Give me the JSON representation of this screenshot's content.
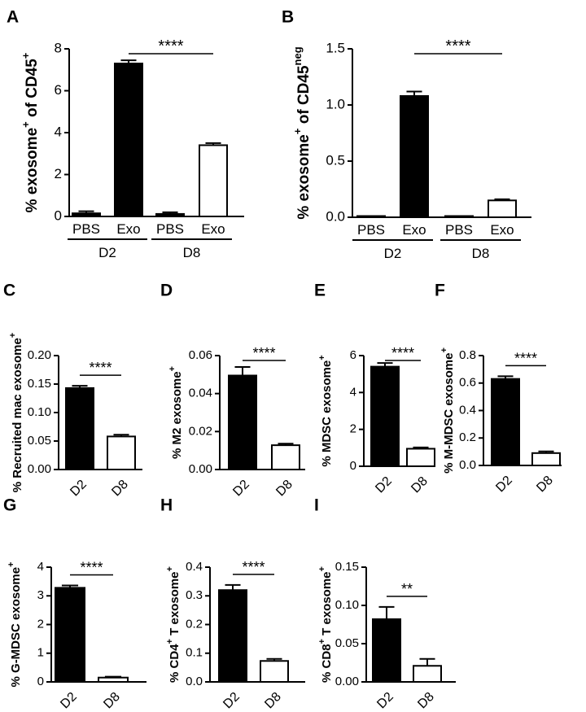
{
  "figure_title": "",
  "chart_data": [
    {
      "panel": "A",
      "type": "bar",
      "ylabel": "% exosome",
      "ylabel_super_before": "+",
      "ylabel_after": " of CD45",
      "ylabel_super_after": "+",
      "ylim": [
        0,
        8
      ],
      "yticks": [
        "0",
        "2",
        "4",
        "6",
        "8"
      ],
      "categories": [
        "PBS",
        "Exo",
        "PBS",
        "Exo"
      ],
      "groups": [
        {
          "label": "D2",
          "span": [
            0,
            1
          ]
        },
        {
          "label": "D8",
          "span": [
            2,
            3
          ]
        }
      ],
      "values": [
        0.15,
        7.3,
        0.12,
        3.4
      ],
      "errors": [
        0.1,
        0.15,
        0.08,
        0.1
      ],
      "fills": [
        "#000000",
        "#000000",
        "#000000",
        "#ffffff"
      ],
      "significance": [
        {
          "from": 1,
          "to": 3,
          "label": "****"
        }
      ]
    },
    {
      "panel": "B",
      "type": "bar",
      "ylabel": "% exosome",
      "ylabel_super_before": "+",
      "ylabel_after": " of CD45",
      "ylabel_super_after": "neg",
      "ylim": [
        0,
        1.5
      ],
      "yticks": [
        "0.0",
        "0.5",
        "1.0",
        "1.5"
      ],
      "categories": [
        "PBS",
        "Exo",
        "PBS",
        "Exo"
      ],
      "groups": [
        {
          "label": "D2",
          "span": [
            0,
            1
          ]
        },
        {
          "label": "D8",
          "span": [
            2,
            3
          ]
        }
      ],
      "values": [
        0.005,
        1.08,
        0.004,
        0.15
      ],
      "errors": [
        0.002,
        0.04,
        0.002,
        0.01
      ],
      "fills": [
        "#000000",
        "#000000",
        "#000000",
        "#ffffff"
      ],
      "significance": [
        {
          "from": 1,
          "to": 3,
          "label": "****"
        }
      ]
    },
    {
      "panel": "C",
      "type": "bar",
      "ylabel": "% Recruited mac exosome",
      "ylabel_super_after": "+",
      "ylim": [
        0,
        0.2
      ],
      "yticks": [
        "0.00",
        "0.05",
        "0.10",
        "0.15",
        "0.20"
      ],
      "categories": [
        "D2",
        "D8"
      ],
      "values": [
        0.143,
        0.058
      ],
      "errors": [
        0.004,
        0.003
      ],
      "fills": [
        "#000000",
        "#ffffff"
      ],
      "significance": [
        {
          "from": 0,
          "to": 1,
          "label": "****"
        }
      ]
    },
    {
      "panel": "D",
      "type": "bar",
      "ylabel": "% M2 exosome",
      "ylabel_super_after": "+",
      "ylim": [
        0,
        0.06
      ],
      "yticks": [
        "0.00",
        "0.02",
        "0.04",
        "0.06"
      ],
      "categories": [
        "D2",
        "D8"
      ],
      "values": [
        0.0495,
        0.0128
      ],
      "errors": [
        0.0045,
        0.0008
      ],
      "fills": [
        "#000000",
        "#ffffff"
      ],
      "significance": [
        {
          "from": 0,
          "to": 1,
          "label": "****"
        }
      ]
    },
    {
      "panel": "E",
      "type": "bar",
      "ylabel": "% MDSC exosome",
      "ylabel_super_after": "+",
      "ylim": [
        0,
        6
      ],
      "yticks": [
        "0",
        "2",
        "4",
        "6"
      ],
      "categories": [
        "D2",
        "D8"
      ],
      "values": [
        5.4,
        0.95
      ],
      "errors": [
        0.2,
        0.07
      ],
      "fills": [
        "#000000",
        "#ffffff"
      ],
      "significance": [
        {
          "from": 0,
          "to": 1,
          "label": "****"
        }
      ]
    },
    {
      "panel": "F",
      "type": "bar",
      "ylabel": "% M-MDSC exosome",
      "ylabel_super_after": "+",
      "ylim": [
        0,
        0.8
      ],
      "yticks": [
        "0.0",
        "0.2",
        "0.4",
        "0.6",
        "0.8"
      ],
      "categories": [
        "D2",
        "D8"
      ],
      "values": [
        0.63,
        0.09
      ],
      "errors": [
        0.02,
        0.012
      ],
      "fills": [
        "#000000",
        "#ffffff"
      ],
      "significance": [
        {
          "from": 0,
          "to": 1,
          "label": "****"
        }
      ]
    },
    {
      "panel": "G",
      "type": "bar",
      "ylabel": "% G-MDSC exosome",
      "ylabel_super_after": "+",
      "ylim": [
        0,
        4
      ],
      "yticks": [
        "0",
        "1",
        "2",
        "3",
        "4"
      ],
      "categories": [
        "D2",
        "D8"
      ],
      "values": [
        3.28,
        0.15
      ],
      "errors": [
        0.08,
        0.03
      ],
      "fills": [
        "#000000",
        "#ffffff"
      ],
      "significance": [
        {
          "from": 0,
          "to": 1,
          "label": "****"
        }
      ]
    },
    {
      "panel": "H",
      "type": "bar",
      "ylabel": "% CD4",
      "ylabel_super_mid": "+",
      "ylabel_after": " T exosome",
      "ylabel_super_after": "+",
      "ylim": [
        0,
        0.4
      ],
      "yticks": [
        "0.0",
        "0.1",
        "0.2",
        "0.3",
        "0.4"
      ],
      "categories": [
        "D2",
        "D8"
      ],
      "values": [
        0.32,
        0.073
      ],
      "errors": [
        0.018,
        0.007
      ],
      "fills": [
        "#000000",
        "#ffffff"
      ],
      "significance": [
        {
          "from": 0,
          "to": 1,
          "label": "****"
        }
      ]
    },
    {
      "panel": "I",
      "type": "bar",
      "ylabel": "% CD8",
      "ylabel_super_mid": "+",
      "ylabel_after": " T exosome",
      "ylabel_super_after": "+",
      "ylim": [
        0,
        0.15
      ],
      "yticks": [
        "0.00",
        "0.05",
        "0.10",
        "0.15"
      ],
      "categories": [
        "D2",
        "D8"
      ],
      "values": [
        0.082,
        0.021
      ],
      "errors": [
        0.016,
        0.009
      ],
      "fills": [
        "#000000",
        "#ffffff"
      ],
      "significance": [
        {
          "from": 0,
          "to": 1,
          "label": "**"
        }
      ]
    }
  ]
}
